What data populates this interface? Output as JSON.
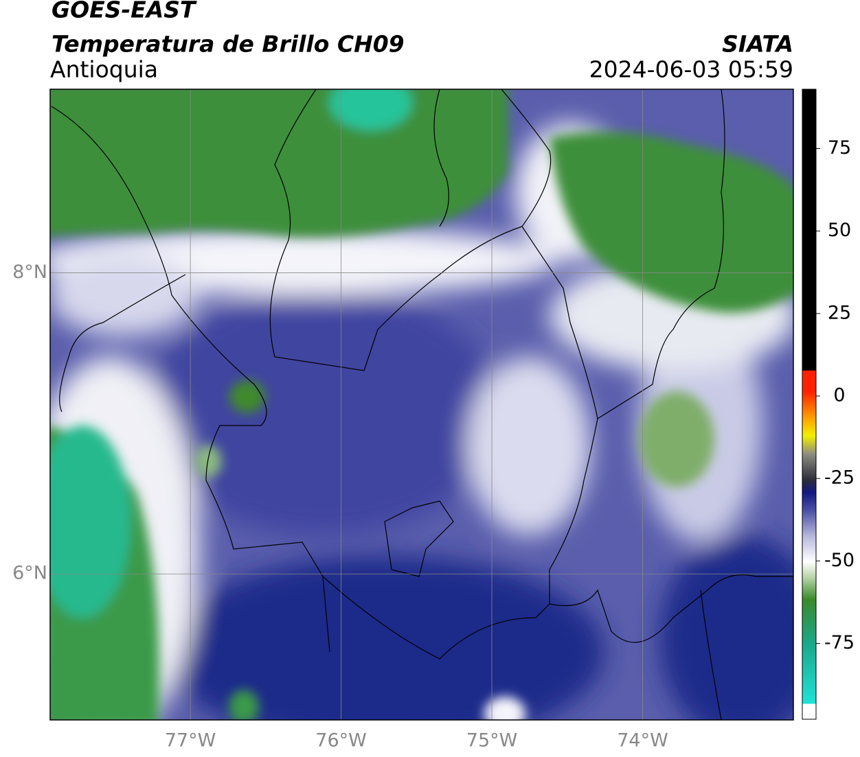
{
  "header": {
    "satellite": "GOES-EAST",
    "product": "Temperatura de Brillo CH09",
    "region": "Antioquia",
    "agency": "SIATA",
    "datetime": "2024-06-03 05:59"
  },
  "map": {
    "xlim": [
      -77.93,
      -73.0
    ],
    "ylim": [
      5.03,
      9.22
    ],
    "xticks": [
      {
        "value": -77,
        "label": "77°W"
      },
      {
        "value": -76,
        "label": "76°W"
      },
      {
        "value": -75,
        "label": "75°W"
      },
      {
        "value": -74,
        "label": "74°W"
      }
    ],
    "yticks": [
      {
        "value": 8,
        "label": "8°N"
      },
      {
        "value": 6,
        "label": "6°N"
      }
    ],
    "grid": true
  },
  "colorbar": {
    "lim": [
      -98,
      93
    ],
    "ticks": [
      75,
      50,
      25,
      0,
      -25,
      -50,
      -75
    ]
  }
}
